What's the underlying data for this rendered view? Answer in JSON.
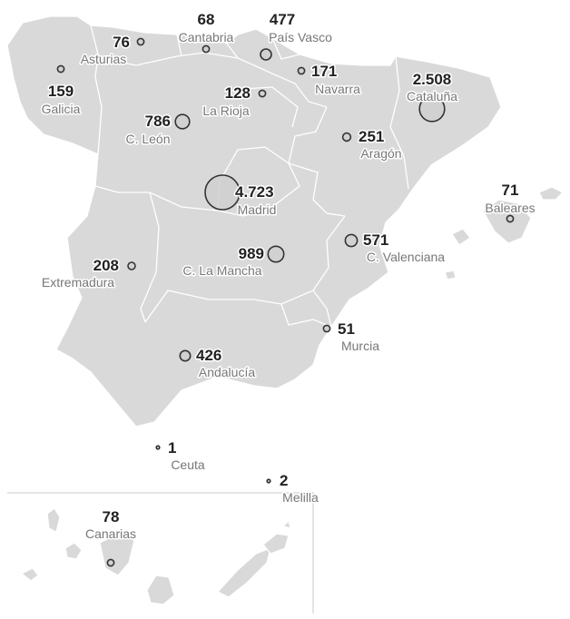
{
  "colors": {
    "land": "#d9d9d9",
    "border": "#ffffff",
    "bubble_fill": "#cfcfcf",
    "bubble_stroke": "#333333",
    "value_text": "#222222",
    "label_text": "#777777",
    "frame": "#c8c8c8"
  },
  "regions": [
    {
      "name": "Galicia",
      "value": "159",
      "amount": 159
    },
    {
      "name": "Asturias",
      "value": "76",
      "amount": 76
    },
    {
      "name": "Cantabria",
      "value": "68",
      "amount": 68
    },
    {
      "name": "País Vasco",
      "value": "477",
      "amount": 477
    },
    {
      "name": "Navarra",
      "value": "171",
      "amount": 171
    },
    {
      "name": "La Rioja",
      "value": "128",
      "amount": 128
    },
    {
      "name": "Cataluña",
      "value": "2.508",
      "amount": 2508
    },
    {
      "name": "C. León",
      "value": "786",
      "amount": 786
    },
    {
      "name": "Aragón",
      "value": "251",
      "amount": 251
    },
    {
      "name": "Madrid",
      "value": "4.723",
      "amount": 4723
    },
    {
      "name": "Baleares",
      "value": "71",
      "amount": 71
    },
    {
      "name": "Extremadura",
      "value": "208",
      "amount": 208
    },
    {
      "name": "C. La Mancha",
      "value": "989",
      "amount": 989
    },
    {
      "name": "C. Valenciana",
      "value": "571",
      "amount": 571
    },
    {
      "name": "Murcia",
      "value": "51",
      "amount": 51
    },
    {
      "name": "Andalucía",
      "value": "426",
      "amount": 426
    },
    {
      "name": "Ceuta",
      "value": "1",
      "amount": 1
    },
    {
      "name": "Melilla",
      "value": "2",
      "amount": 2
    },
    {
      "name": "Canarias",
      "value": "78",
      "amount": 78
    }
  ]
}
